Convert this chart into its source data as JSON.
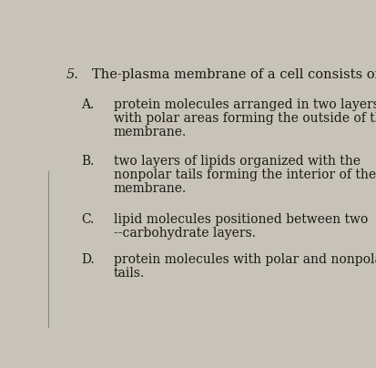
{
  "bg_color": "#c8c3b8",
  "question_number": "5.",
  "question_text": "The-plasma membrane of a cell consists of",
  "options": [
    {
      "label": "A.",
      "lines": [
        "protein molecules arranged in two layers",
        "with polar areas forming the outside of the",
        "membrane."
      ]
    },
    {
      "label": "B.",
      "lines": [
        "two layers of lipids organized with the",
        "nonpolar tails forming the interior of the",
        "membrane."
      ]
    },
    {
      "label": "C.",
      "lines": [
        "lipid molecules positioned between two",
        "--carbohydrate layers."
      ]
    },
    {
      "label": "D.",
      "lines": [
        "protein molecules with polar and nonpolar",
        "tails."
      ]
    }
  ],
  "font_size_question": 10.5,
  "font_size_option": 10.0,
  "text_color": "#1a1612",
  "font_family": "DejaVu Serif"
}
